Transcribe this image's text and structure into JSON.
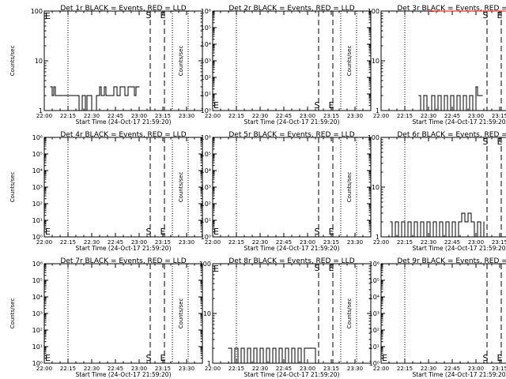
{
  "page": {
    "xlabel": "Start Time (24-Oct-17 21:59:20)",
    "ylabel": "Counts/sec",
    "x_ticks": [
      "22:00",
      "22:15",
      "22:30",
      "22:45",
      "23:00",
      "23:15",
      "23:30"
    ],
    "dotted_times": [
      "22:15",
      "23:21",
      "23:31"
    ],
    "marker_labels": {
      "start": "S",
      "end": "E"
    },
    "colors": {
      "events": "#000000",
      "lld": "#ff0000"
    }
  },
  "chart_data": [
    {
      "title": "Det 1r BLACK = Events, RED = LLD",
      "type": "line",
      "yscale": "log",
      "ylim": [
        1,
        100
      ],
      "y_ticks": [
        "1",
        "10",
        "100"
      ],
      "x_range": [
        "22:00",
        "23:40"
      ],
      "markers": {
        "S": "23:07",
        "E": "23:16"
      },
      "series": [
        {
          "x": [
            "22:04",
            "22:05",
            "22:06",
            "22:07",
            "22:10",
            "22:14",
            "22:18",
            "22:21",
            "22:22",
            "22:24",
            "22:26",
            "22:27",
            "22:29",
            "22:30",
            "22:33",
            "22:35",
            "22:36",
            "22:38",
            "22:39",
            "22:41",
            "22:44",
            "22:46",
            "22:48",
            "22:51",
            "22:53",
            "22:55",
            "22:57",
            "22:58",
            "23:00"
          ],
          "y": [
            3,
            2,
            3,
            2,
            2,
            2,
            2,
            2,
            1,
            2,
            1,
            2,
            2,
            1,
            2,
            3,
            2,
            3,
            2,
            2,
            3,
            2,
            3,
            2,
            3,
            3,
            2,
            3,
            3
          ]
        }
      ]
    },
    {
      "title": "Det 2r BLACK = Events, RED = LLD",
      "type": "line",
      "yscale": "log",
      "ylim": [
        1,
        1000000
      ],
      "y_ticks": [
        "10⁰",
        "10¹",
        "10²",
        "10³",
        "10⁴",
        "10⁵",
        "10⁶"
      ],
      "x_range": [
        "22:00",
        "23:40"
      ],
      "markers": {
        "S": "23:07",
        "E": "23:16"
      },
      "series": []
    },
    {
      "title": "Det 3r BLACK = Events, RED = LLD",
      "type": "line",
      "yscale": "log",
      "ylim": [
        1,
        100
      ],
      "y_ticks": [
        "1",
        "10",
        "100"
      ],
      "x_range": [
        "22:00",
        "23:40"
      ],
      "markers": {
        "S": "23:07",
        "E": "23:16"
      },
      "series": [
        {
          "x": [
            "22:24",
            "22:25",
            "22:27",
            "22:29",
            "22:32",
            "22:34",
            "22:36",
            "22:38",
            "22:40",
            "22:42",
            "22:44",
            "22:46",
            "22:48",
            "22:50",
            "22:52",
            "22:54",
            "22:56",
            "22:58",
            "23:00",
            "23:01",
            "23:04"
          ],
          "y": [
            2,
            1,
            2,
            1,
            2,
            1,
            2,
            1,
            2,
            1,
            2,
            1,
            2,
            1,
            2,
            1,
            2,
            1,
            3,
            2,
            2
          ]
        },
        {
          "name": "LLD",
          "x": [
            "22:30",
            "22:31",
            "22:33",
            "22:35",
            "22:36",
            "23:26",
            "23:28",
            "23:29",
            "23:31"
          ],
          "y": [
            100,
            98,
            100,
            99,
            100,
            100,
            97,
            100,
            99
          ]
        }
      ]
    },
    {
      "title": "Det 4r BLACK = Events, RED = LLD",
      "type": "line",
      "yscale": "log",
      "ylim": [
        1,
        1000000
      ],
      "y_ticks": [
        "10⁰",
        "10¹",
        "10²",
        "10³",
        "10⁴",
        "10⁵",
        "10⁶"
      ],
      "x_range": [
        "22:00",
        "23:40"
      ],
      "markers": {
        "S": "23:07",
        "E": "23:16"
      },
      "series": []
    },
    {
      "title": "Det 5r BLACK = Events, RED = LLD",
      "type": "line",
      "yscale": "log",
      "ylim": [
        1,
        1000000
      ],
      "y_ticks": [
        "10⁰",
        "10¹",
        "10²",
        "10³",
        "10⁴",
        "10⁵",
        "10⁶"
      ],
      "x_range": [
        "22:00",
        "23:40"
      ],
      "markers": {
        "S": "23:07",
        "E": "23:16"
      },
      "series": []
    },
    {
      "title": "Det 6r BLACK = Events, RED = LLD",
      "type": "line",
      "yscale": "log",
      "ylim": [
        1,
        100
      ],
      "y_ticks": [
        "1",
        "10",
        "100"
      ],
      "x_range": [
        "22:00",
        "23:40"
      ],
      "markers": {
        "S": "23:07",
        "E": "23:16"
      },
      "series": [
        {
          "x": [
            "22:06",
            "22:07",
            "22:09",
            "22:11",
            "22:13",
            "22:15",
            "22:17",
            "22:19",
            "22:21",
            "22:23",
            "22:25",
            "22:27",
            "22:29",
            "22:31",
            "22:33",
            "22:35",
            "22:37",
            "22:39",
            "22:41",
            "22:43",
            "22:45",
            "22:47",
            "22:49",
            "22:51",
            "22:53",
            "22:55",
            "22:57",
            "22:59",
            "23:01",
            "23:03",
            "23:05"
          ],
          "y": [
            2,
            1,
            2,
            1,
            2,
            1,
            2,
            1,
            2,
            1,
            2,
            1,
            2,
            1,
            2,
            1,
            2,
            1,
            2,
            1,
            2,
            1,
            2,
            3,
            2,
            3,
            2,
            1,
            2,
            1,
            2
          ]
        }
      ]
    },
    {
      "title": "Det 7r BLACK = Events, RED = LLD",
      "type": "line",
      "yscale": "log",
      "ylim": [
        1,
        1000000
      ],
      "y_ticks": [
        "10⁰",
        "10¹",
        "10²",
        "10³",
        "10⁴",
        "10⁵",
        "10⁶"
      ],
      "x_range": [
        "22:00",
        "23:40"
      ],
      "markers": {
        "S": "23:07",
        "E": "23:16"
      },
      "series": []
    },
    {
      "title": "Det 8r BLACK = Events, RED = LLD",
      "type": "line",
      "yscale": "log",
      "ylim": [
        1,
        100
      ],
      "y_ticks": [
        "1",
        "10",
        "100"
      ],
      "x_range": [
        "22:00",
        "23:40"
      ],
      "markers": {
        "S": "23:07",
        "E": "23:16"
      },
      "series": [
        {
          "x": [
            "22:10",
            "22:12",
            "22:14",
            "22:16",
            "22:18",
            "22:20",
            "22:22",
            "22:24",
            "22:26",
            "22:28",
            "22:30",
            "22:32",
            "22:34",
            "22:36",
            "22:38",
            "22:40",
            "22:42",
            "22:44",
            "22:46",
            "22:48",
            "22:50",
            "22:52",
            "22:54",
            "22:56",
            "22:58",
            "23:00",
            "23:02",
            "23:05"
          ],
          "y": [
            2,
            1,
            2,
            1,
            2,
            1,
            2,
            1,
            2,
            1,
            2,
            1,
            2,
            1,
            2,
            1,
            2,
            1,
            2,
            1,
            2,
            1,
            2,
            1,
            2,
            2,
            2,
            1
          ]
        }
      ]
    },
    {
      "title": "Det 9r BLACK = Events, RED = LLD",
      "type": "line",
      "yscale": "log",
      "ylim": [
        1,
        1000000
      ],
      "y_ticks": [
        "10⁰",
        "10¹",
        "10²",
        "10³",
        "10⁴",
        "10⁵",
        "10⁶"
      ],
      "x_range": [
        "22:00",
        "23:40"
      ],
      "markers": {
        "S": "23:07",
        "E": "23:16"
      },
      "series": []
    }
  ]
}
